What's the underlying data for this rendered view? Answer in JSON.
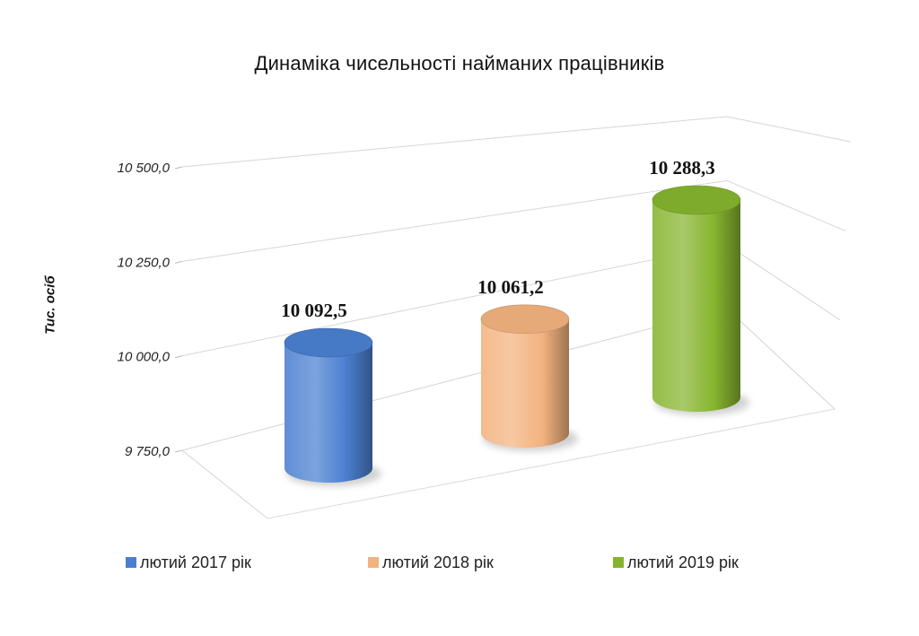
{
  "chart_data": {
    "type": "bar",
    "style": "3d-cylinder",
    "title": "Динаміка чисельності найманих працівників",
    "ylabel": "Тис. осіб",
    "xlabel": "",
    "ylim": [
      9750,
      10500
    ],
    "yticks": [
      9750,
      10000,
      10250,
      10500
    ],
    "ytick_labels": [
      "9 750,0",
      "10 000,0",
      "10 250,0",
      "10 500,0"
    ],
    "grid": true,
    "legend_position": "bottom",
    "series": [
      {
        "name": "лютий 2017 рік",
        "value": 10092.5,
        "label": "10 092,5",
        "color": "#4a7fd0"
      },
      {
        "name": "лютий  2018 рік",
        "value": 10061.2,
        "label": "10 061,2",
        "color": "#f2b27e"
      },
      {
        "name": "лютий 2019 рік",
        "value": 10288.3,
        "label": "10 288,3",
        "color": "#86b42e"
      }
    ]
  }
}
